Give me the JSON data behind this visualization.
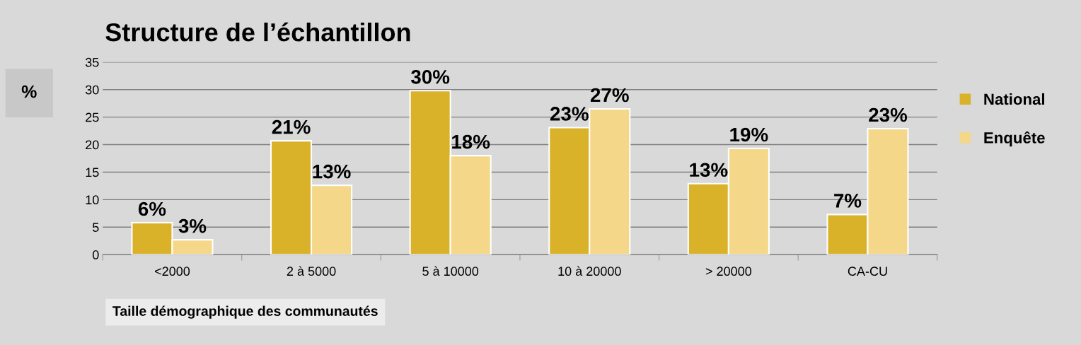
{
  "chart_data": {
    "type": "bar",
    "title": "Structure de l’échantillon",
    "ylabel": "%",
    "xlabel": "Taille démographique des communautés",
    "categories": [
      "<2000",
      "2 à 5000",
      "5 à 10000",
      "10 à 20000",
      "> 20000",
      "CA-CU"
    ],
    "series": [
      {
        "name": "National",
        "color": "#d9b22a",
        "values": [
          5.8,
          20.7,
          29.8,
          23.1,
          12.9,
          7.3
        ],
        "value_labels": [
          "6%",
          "21%",
          "30%",
          "23%",
          "13%",
          "7%"
        ]
      },
      {
        "name": "Enquête",
        "color": "#f5d78a",
        "values": [
          2.7,
          12.6,
          18.0,
          26.5,
          19.3,
          22.9
        ],
        "value_labels": [
          "3%",
          "13%",
          "18%",
          "27%",
          "19%",
          "23%"
        ]
      }
    ],
    "ylim": [
      0,
      35
    ],
    "yticks": [
      0,
      5,
      10,
      15,
      20,
      25,
      30,
      35
    ],
    "grid": "y",
    "legend": "right"
  }
}
